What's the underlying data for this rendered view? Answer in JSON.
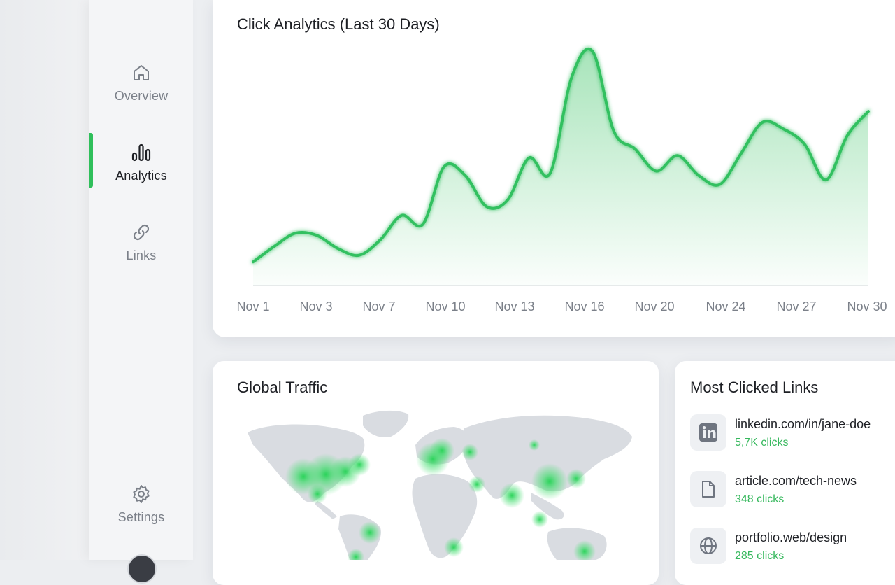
{
  "nav": {
    "items": [
      {
        "label": "Overview",
        "icon": "home-icon"
      },
      {
        "label": "Analytics",
        "icon": "bar-chart-icon",
        "active": true
      },
      {
        "label": "Links",
        "icon": "link-icon"
      }
    ],
    "settings": {
      "label": "Settings",
      "icon": "gear-icon"
    }
  },
  "colors": {
    "accent": "#2fbf5b",
    "accent_text": "#36b85d"
  },
  "chart": {
    "title": "Click Analytics (Last 30 Days)",
    "ticks": [
      "Nov 1",
      "Nov 3",
      "Nov 7",
      "Nov 10",
      "Nov 13",
      "Nov 16",
      "Nov 20",
      "Nov 24",
      "Nov 27",
      "Nov 30"
    ]
  },
  "chart_data": {
    "type": "area",
    "title": "Click Analytics (Last 30 Days)",
    "x": [
      "Nov 1",
      "Nov 2",
      "Nov 3",
      "Nov 4",
      "Nov 5",
      "Nov 6",
      "Nov 7",
      "Nov 8",
      "Nov 9",
      "Nov 10",
      "Nov 11",
      "Nov 12",
      "Nov 13",
      "Nov 14",
      "Nov 15",
      "Nov 16",
      "Nov 17",
      "Nov 18",
      "Nov 19",
      "Nov 20",
      "Nov 21",
      "Nov 22",
      "Nov 23",
      "Nov 24",
      "Nov 25",
      "Nov 26",
      "Nov 27",
      "Nov 28",
      "Nov 29",
      "Nov 30"
    ],
    "values": [
      5,
      12,
      18,
      17,
      11,
      8,
      15,
      26,
      22,
      48,
      44,
      30,
      33,
      52,
      45,
      88,
      100,
      64,
      56,
      46,
      53,
      44,
      40,
      54,
      68,
      65,
      58,
      42,
      62,
      73
    ],
    "ylim": [
      0,
      110
    ],
    "grid": false,
    "legend": "none"
  },
  "traffic": {
    "title": "Global Traffic"
  },
  "links": {
    "title": "Most Clicked Links",
    "items": [
      {
        "url": "linkedin.com/in/jane-doe",
        "clicks": "5,7K clicks",
        "icon": "linkedin-icon"
      },
      {
        "url": "article.com/tech-news",
        "clicks": "348 clicks",
        "icon": "document-icon"
      },
      {
        "url": "portfolio.web/design",
        "clicks": "285 clicks",
        "icon": "globe-icon"
      }
    ]
  }
}
